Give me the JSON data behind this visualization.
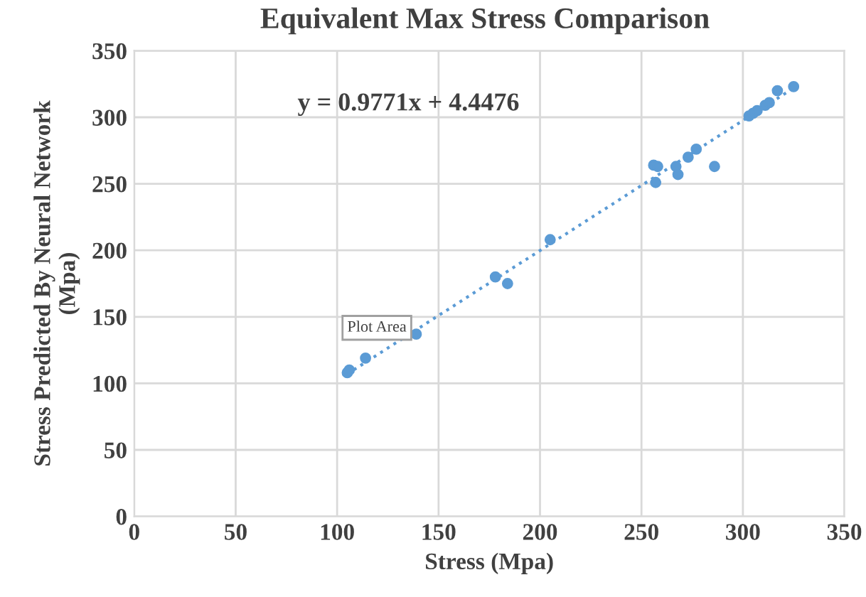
{
  "chart_data": {
    "type": "scatter",
    "title": "Equivalent Max Stress Comparison",
    "xlabel": "Stress (Mpa)",
    "ylabel": "Stress Predicted By Neural Network\n(Mpa)",
    "annotations": [
      "y = 0.9771x + 4.4476",
      "Plot Area"
    ],
    "series": [
      {
        "color": "#5b9bd5",
        "marker": "circle",
        "x": [
          105,
          106,
          114,
          139,
          178,
          184,
          205,
          256,
          258,
          257,
          267,
          268,
          273,
          277,
          286,
          303,
          305,
          307,
          311,
          313,
          317,
          325
        ],
        "values": [
          108,
          110,
          119,
          137,
          180,
          175,
          208,
          264,
          263,
          251,
          263,
          257,
          270,
          276,
          263,
          301,
          303,
          305,
          309,
          311,
          320,
          323
        ]
      },
      {
        "type": "line",
        "color": "#5b9bd5",
        "line_style": "dotted",
        "x": [
          105,
          325
        ],
        "values": [
          107.0,
          322.0
        ]
      }
    ],
    "xlim": [
      0,
      350
    ],
    "xticks": [
      0,
      50,
      100,
      150,
      200,
      250,
      300,
      350
    ],
    "ylim": [
      0,
      350
    ],
    "yticks": [
      0,
      50,
      100,
      150,
      200,
      250,
      300,
      350
    ],
    "grid": true
  }
}
